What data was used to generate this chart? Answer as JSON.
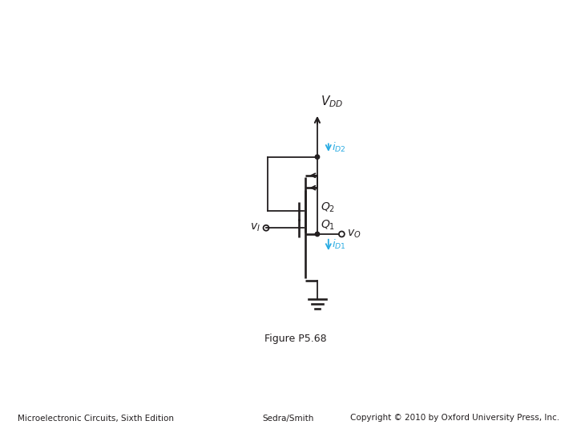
{
  "title": "Figure P5.68",
  "footer_left": "Microelectronic Circuits, Sixth Edition",
  "footer_center": "Sedra/Smith",
  "footer_right": "Copyright © 2010 by Oxford University Press, Inc.",
  "cyan_color": "#29ABE2",
  "black_color": "#231F20",
  "background": "#ffffff",
  "xlim": [
    0,
    720
  ],
  "ylim": [
    0,
    540
  ]
}
